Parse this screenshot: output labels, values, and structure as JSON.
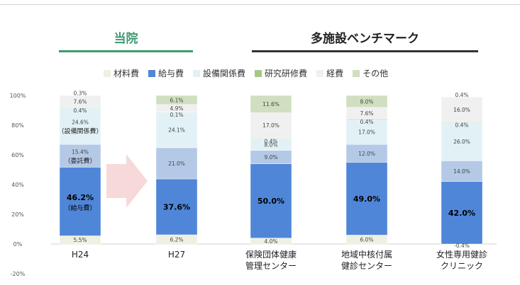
{
  "headings": {
    "ours": "当院",
    "benchmark": "多施設ベンチマーク"
  },
  "legend": [
    {
      "name": "材料費",
      "color": "#eef0e2"
    },
    {
      "name": "給与費",
      "color": "#4f86d8"
    },
    {
      "name": "設備関係費",
      "color": "#e2f1f6"
    },
    {
      "name": "研究研修費",
      "color": "#a9c784"
    },
    {
      "name": "経費",
      "color": "#f0f0f0"
    },
    {
      "name": "その他",
      "color": "#cfdfbf"
    }
  ],
  "chart_data": {
    "type": "bar",
    "stacked": true,
    "categories": [
      "H24",
      "H27",
      "保険団体健康\n管理センター",
      "地域中核付属\n健診センター",
      "女性専用健診\nクリニック"
    ],
    "yticks": [
      "100%",
      "80%",
      "60%",
      "40%",
      "20%",
      "0%",
      "-20%"
    ],
    "ylim": [
      -20,
      100
    ],
    "segments": [
      {
        "bar": 0,
        "key": "material",
        "color": "#eef0e2",
        "value": 5.5,
        "label": "5.5%"
      },
      {
        "bar": 0,
        "key": "salary",
        "color": "#4f86d8",
        "value": 46.2,
        "label": "46.2%",
        "sublabel": "（給与費）",
        "bold": true
      },
      {
        "bar": 0,
        "key": "outsourcing",
        "color": "#b4c9e6",
        "value": 15.4,
        "label": "15.4%",
        "sublabel": "（委託費）"
      },
      {
        "bar": 0,
        "key": "equipment",
        "color": "#e2f1f6",
        "value": 24.6,
        "label": "24.6%",
        "sublabel": "（設備関係費）"
      },
      {
        "bar": 0,
        "key": "research",
        "color": "#a9c784",
        "value": 0.4,
        "label": "0.4%"
      },
      {
        "bar": 0,
        "key": "expense",
        "color": "#f0f0f0",
        "value": 7.6,
        "label": "7.6%"
      },
      {
        "bar": 0,
        "key": "other",
        "color": "#cfdfbf",
        "value": 0.3,
        "label": "0.3%"
      },
      {
        "bar": 1,
        "key": "material",
        "color": "#eef0e2",
        "value": 6.2,
        "label": "6.2%"
      },
      {
        "bar": 1,
        "key": "salary",
        "color": "#4f86d8",
        "value": 37.6,
        "label": "37.6%",
        "bold": true
      },
      {
        "bar": 1,
        "key": "outsourcing",
        "color": "#b4c9e6",
        "value": 21.0,
        "label": "21.0%"
      },
      {
        "bar": 1,
        "key": "equipment",
        "color": "#e2f1f6",
        "value": 24.1,
        "label": "24.1%"
      },
      {
        "bar": 1,
        "key": "research",
        "color": "#a9c784",
        "value": 0.1,
        "label": "0.1%"
      },
      {
        "bar": 1,
        "key": "expense",
        "color": "#f0f0f0",
        "value": 4.9,
        "label": "4.9%"
      },
      {
        "bar": 1,
        "key": "other",
        "color": "#cfdfbf",
        "value": 6.1,
        "label": "6.1%"
      },
      {
        "bar": 2,
        "key": "material",
        "color": "#eef0e2",
        "value": 4.0,
        "label": "4.0%"
      },
      {
        "bar": 2,
        "key": "salary",
        "color": "#4f86d8",
        "value": 50.0,
        "label": "50.0%",
        "bold": true
      },
      {
        "bar": 2,
        "key": "outsourcing",
        "color": "#b4c9e6",
        "value": 9.0,
        "label": "9.0%"
      },
      {
        "bar": 2,
        "key": "equipment",
        "color": "#e2f1f6",
        "value": 8.0,
        "label": "8.0%"
      },
      {
        "bar": 2,
        "key": "research",
        "color": "#a9c784",
        "value": 0.4,
        "label": "0.4%"
      },
      {
        "bar": 2,
        "key": "expense",
        "color": "#f0f0f0",
        "value": 17.0,
        "label": "17.0%"
      },
      {
        "bar": 2,
        "key": "other",
        "color": "#cfdfbf",
        "value": 11.6,
        "label": "11.6%"
      },
      {
        "bar": 3,
        "key": "material",
        "color": "#eef0e2",
        "value": 6.0,
        "label": "6.0%"
      },
      {
        "bar": 3,
        "key": "salary",
        "color": "#4f86d8",
        "value": 49.0,
        "label": "49.0%",
        "bold": true
      },
      {
        "bar": 3,
        "key": "outsourcing",
        "color": "#b4c9e6",
        "value": 12.0,
        "label": "12.0%"
      },
      {
        "bar": 3,
        "key": "equipment",
        "color": "#e2f1f6",
        "value": 17.0,
        "label": "17.0%"
      },
      {
        "bar": 3,
        "key": "research",
        "color": "#a9c784",
        "value": 0.4,
        "label": "0.4%"
      },
      {
        "bar": 3,
        "key": "expense",
        "color": "#f0f0f0",
        "value": 7.6,
        "label": "7.6%"
      },
      {
        "bar": 3,
        "key": "other",
        "color": "#cfdfbf",
        "value": 8.0,
        "label": "8.0%"
      },
      {
        "bar": 4,
        "key": "material",
        "color": "#eef0e2",
        "value": -0.4,
        "label": "-0.4%"
      },
      {
        "bar": 4,
        "key": "salary",
        "color": "#4f86d8",
        "value": 42.0,
        "label": "42.0%",
        "bold": true
      },
      {
        "bar": 4,
        "key": "outsourcing",
        "color": "#b4c9e6",
        "value": 14.0,
        "label": "14.0%"
      },
      {
        "bar": 4,
        "key": "equipment",
        "color": "#e2f1f6",
        "value": 26.0,
        "label": "26.0%"
      },
      {
        "bar": 4,
        "key": "research",
        "color": "#a9c784",
        "value": 0.4,
        "label": "0.4%"
      },
      {
        "bar": 4,
        "key": "expense",
        "color": "#f0f0f0",
        "value": 16.0,
        "label": "16.0%"
      },
      {
        "bar": 4,
        "key": "other",
        "color": "#cfdfbf",
        "value": 0.4,
        "label": "0.4%"
      }
    ]
  }
}
